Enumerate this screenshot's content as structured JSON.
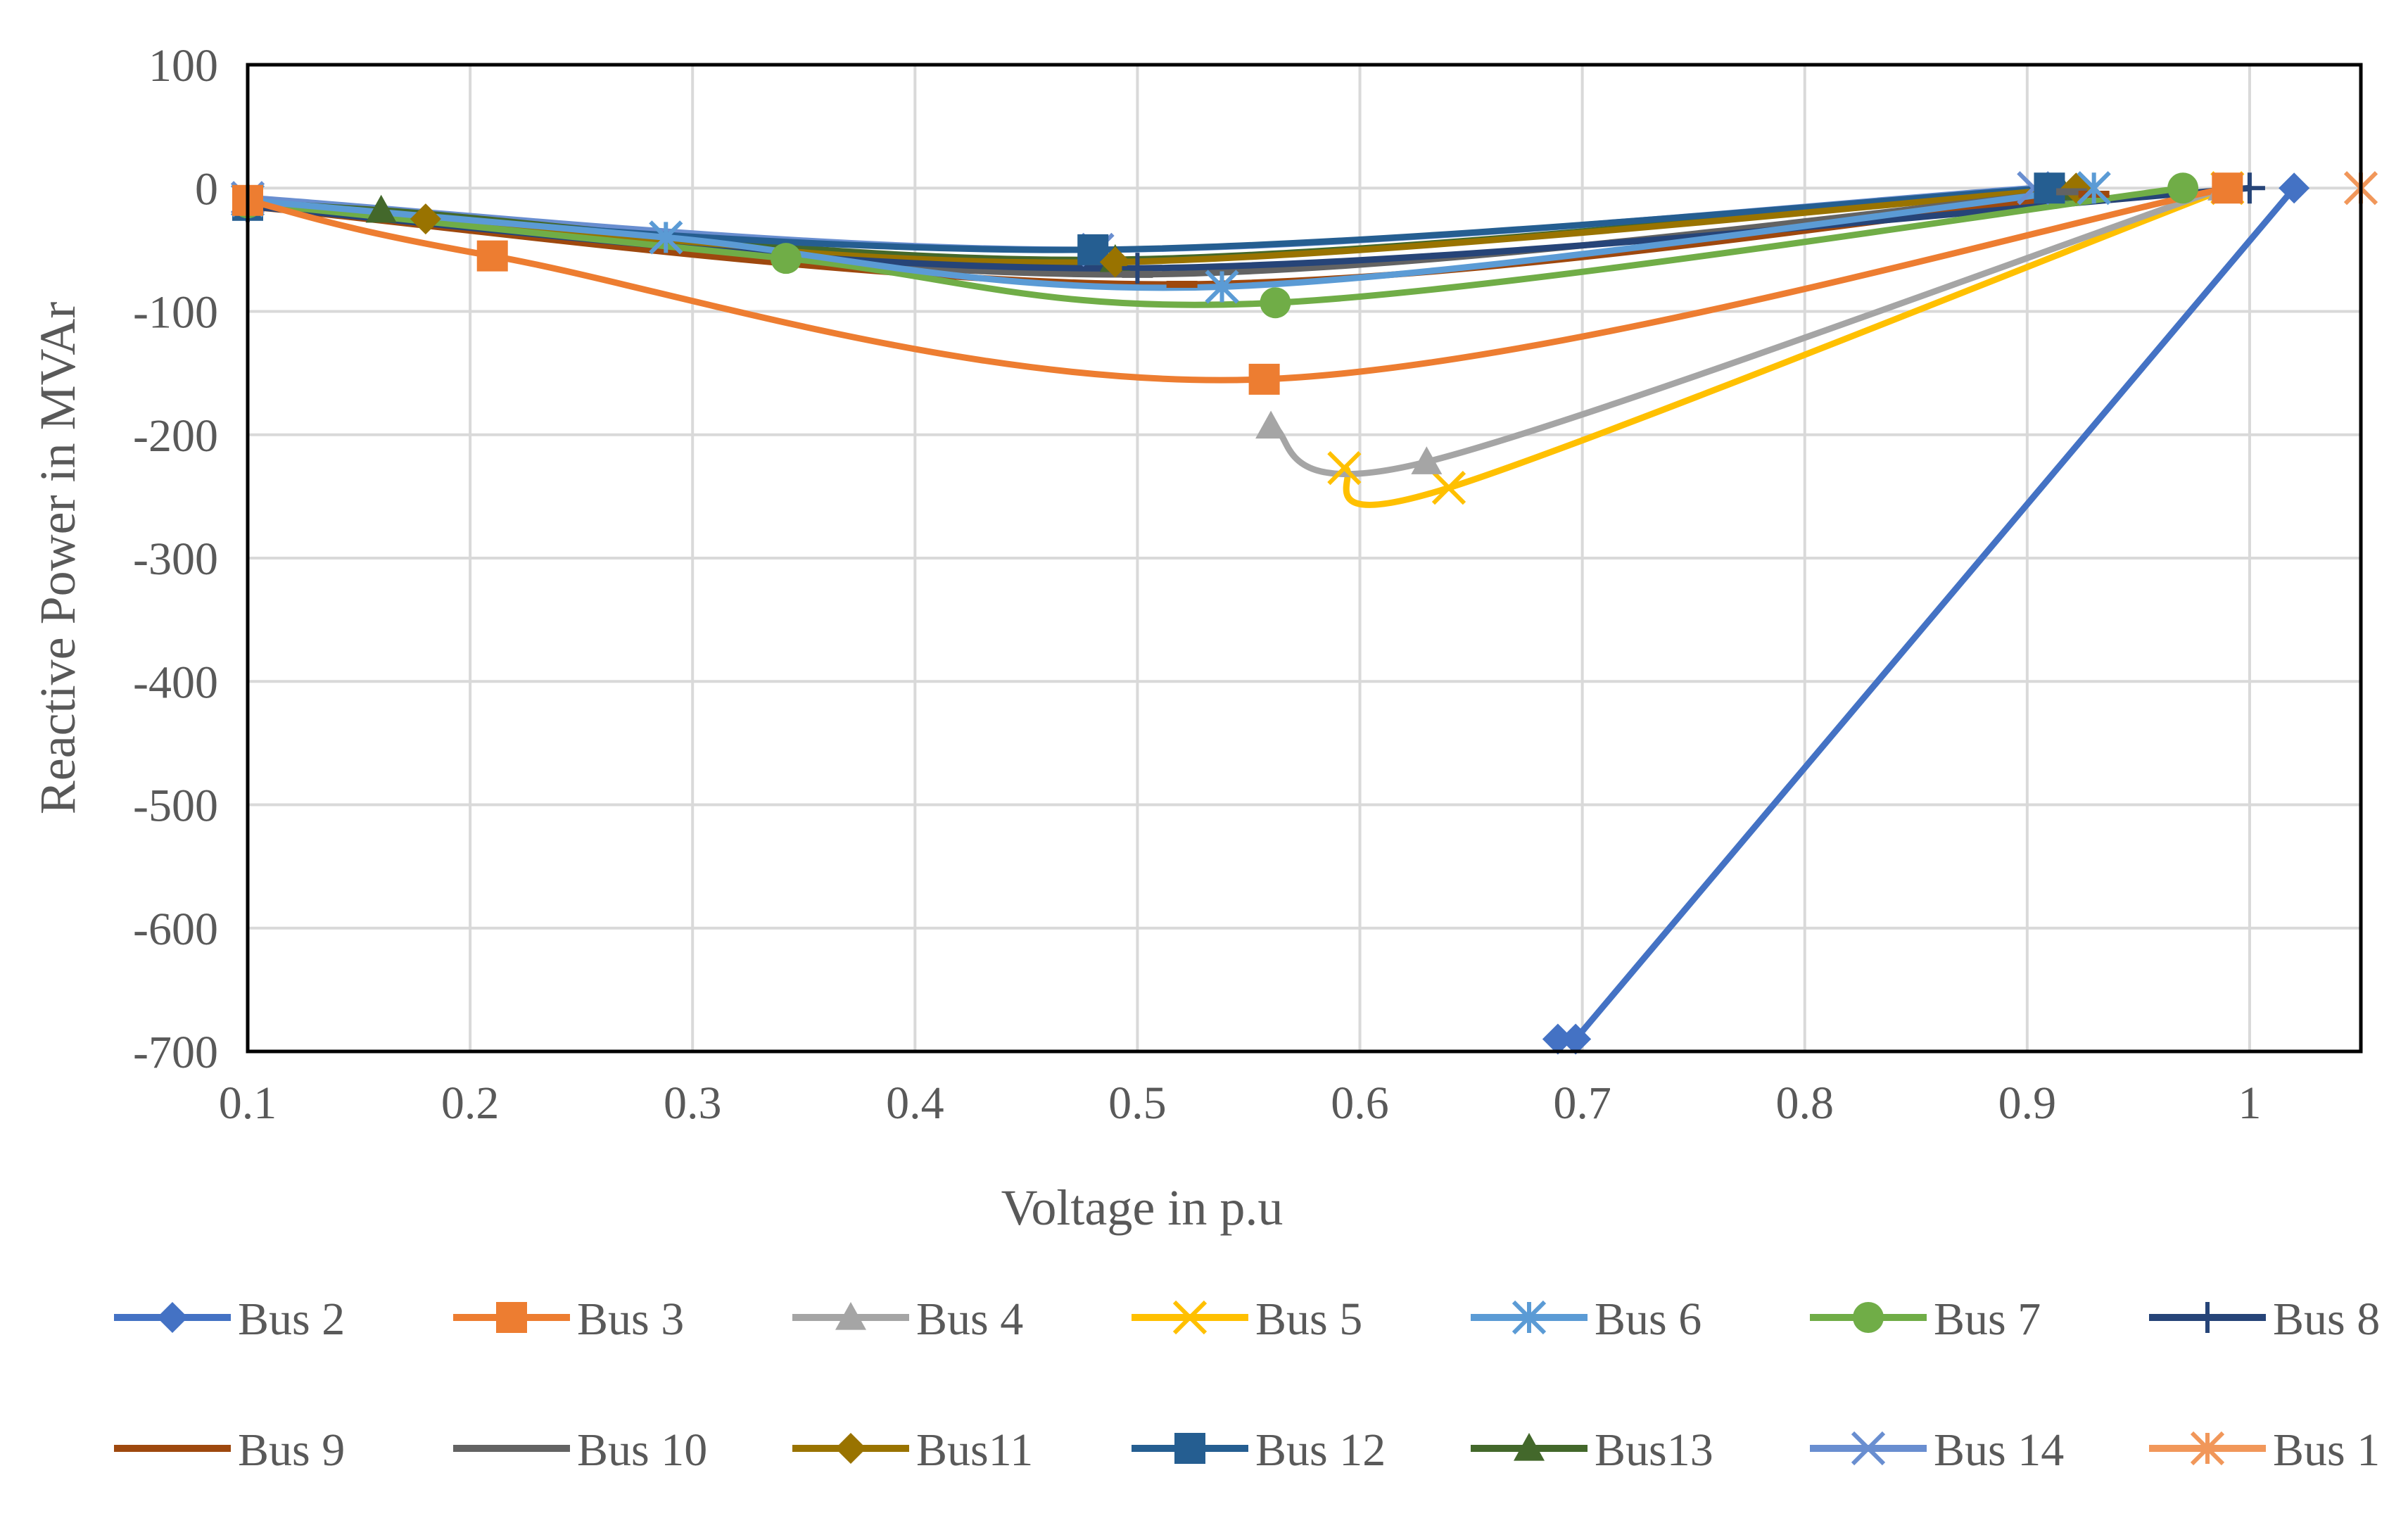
{
  "chart_data": {
    "type": "scatter",
    "xlabel": "Voltage in p.u",
    "ylabel": "Reactive Power in MVAr",
    "xlim": [
      0.1,
      1.05
    ],
    "ylim": [
      -700,
      100
    ],
    "xticks": [
      0.1,
      0.2,
      0.3,
      0.4,
      0.5,
      0.6,
      0.7,
      0.8,
      0.9,
      1
    ],
    "xtick_labels": [
      "0.1",
      "0.2",
      "0.3",
      "0.4",
      "0.5",
      "0.6",
      "0.7",
      "0.8",
      "0.9",
      "1"
    ],
    "yticks": [
      100,
      0,
      -100,
      -200,
      -300,
      -400,
      -500,
      -600,
      -700
    ],
    "ytick_labels": [
      "100",
      "0",
      "-100",
      "-200",
      "-300",
      "-400",
      "-500",
      "-600",
      "-700"
    ],
    "grid": true,
    "legend_position": "bottom",
    "series": [
      {
        "name": "Bus 2",
        "color": "#4472C4",
        "marker": "diamond",
        "smooth": false,
        "points": [
          [
            1.02,
            0
          ],
          [
            0.697,
            -690
          ],
          [
            0.689,
            -690
          ]
        ]
      },
      {
        "name": "Bus 3",
        "color": "#ED7D31",
        "marker": "square",
        "smooth": true,
        "points": [
          [
            0.99,
            0
          ],
          [
            0.557,
            -155
          ],
          [
            0.21,
            -55
          ],
          [
            0.1,
            -10
          ]
        ]
      },
      {
        "name": "Bus 4",
        "color": "#A5A5A5",
        "marker": "triangle",
        "smooth": true,
        "points": [
          [
            0.988,
            0
          ],
          [
            0.63,
            -222
          ],
          [
            0.56,
            -193
          ]
        ]
      },
      {
        "name": "Bus 5",
        "color": "#FFC000",
        "marker": "x",
        "smooth": true,
        "points": [
          [
            0.99,
            0
          ],
          [
            0.64,
            -243
          ],
          [
            0.593,
            -227
          ]
        ]
      },
      {
        "name": "Bus 6",
        "color": "#5B9BD5",
        "marker": "star",
        "smooth": true,
        "points": [
          [
            0.93,
            0
          ],
          [
            0.538,
            -80
          ],
          [
            0.288,
            -40
          ],
          [
            0.1,
            -10
          ]
        ]
      },
      {
        "name": "Bus 7",
        "color": "#70AD47",
        "marker": "circle",
        "smooth": true,
        "points": [
          [
            0.97,
            0
          ],
          [
            0.562,
            -93
          ],
          [
            0.342,
            -57
          ],
          [
            0.1,
            -12
          ]
        ]
      },
      {
        "name": "Bus 8",
        "color": "#264478",
        "marker": "plus",
        "smooth": true,
        "points": [
          [
            1.0,
            0
          ],
          [
            0.5,
            -65
          ],
          [
            0.1,
            -15
          ]
        ]
      },
      {
        "name": "Bus 9",
        "color": "#9E480E",
        "marker": "dash",
        "smooth": true,
        "points": [
          [
            0.93,
            -5
          ],
          [
            0.52,
            -78
          ],
          [
            0.1,
            -15
          ]
        ]
      },
      {
        "name": "Bus 10",
        "color": "#636363",
        "marker": "dash",
        "smooth": true,
        "points": [
          [
            0.92,
            -3
          ],
          [
            0.5,
            -70
          ],
          [
            0.1,
            -14
          ]
        ]
      },
      {
        "name": "Bus11",
        "color": "#997300",
        "marker": "diamond",
        "smooth": true,
        "points": [
          [
            0.922,
            0
          ],
          [
            0.49,
            -60
          ],
          [
            0.18,
            -25
          ],
          [
            0.1,
            -13
          ]
        ]
      },
      {
        "name": "Bus 12",
        "color": "#255E91",
        "marker": "square",
        "smooth": true,
        "points": [
          [
            0.91,
            0
          ],
          [
            0.48,
            -50
          ],
          [
            0.1,
            -14
          ]
        ]
      },
      {
        "name": "Bus13",
        "color": "#43682B",
        "marker": "triangle",
        "smooth": true,
        "points": [
          [
            0.915,
            0
          ],
          [
            0.49,
            -58
          ],
          [
            0.16,
            -18
          ],
          [
            0.1,
            -12
          ]
        ]
      },
      {
        "name": "Bus 14",
        "color": "#698ED0",
        "marker": "x",
        "smooth": true,
        "points": [
          [
            0.903,
            0
          ],
          [
            0.482,
            -50
          ],
          [
            0.1,
            -8
          ]
        ]
      },
      {
        "name": "Bus 1",
        "color": "#F1975A",
        "marker": "star",
        "smooth": false,
        "points": [
          [
            1.05,
            0
          ]
        ]
      }
    ]
  }
}
